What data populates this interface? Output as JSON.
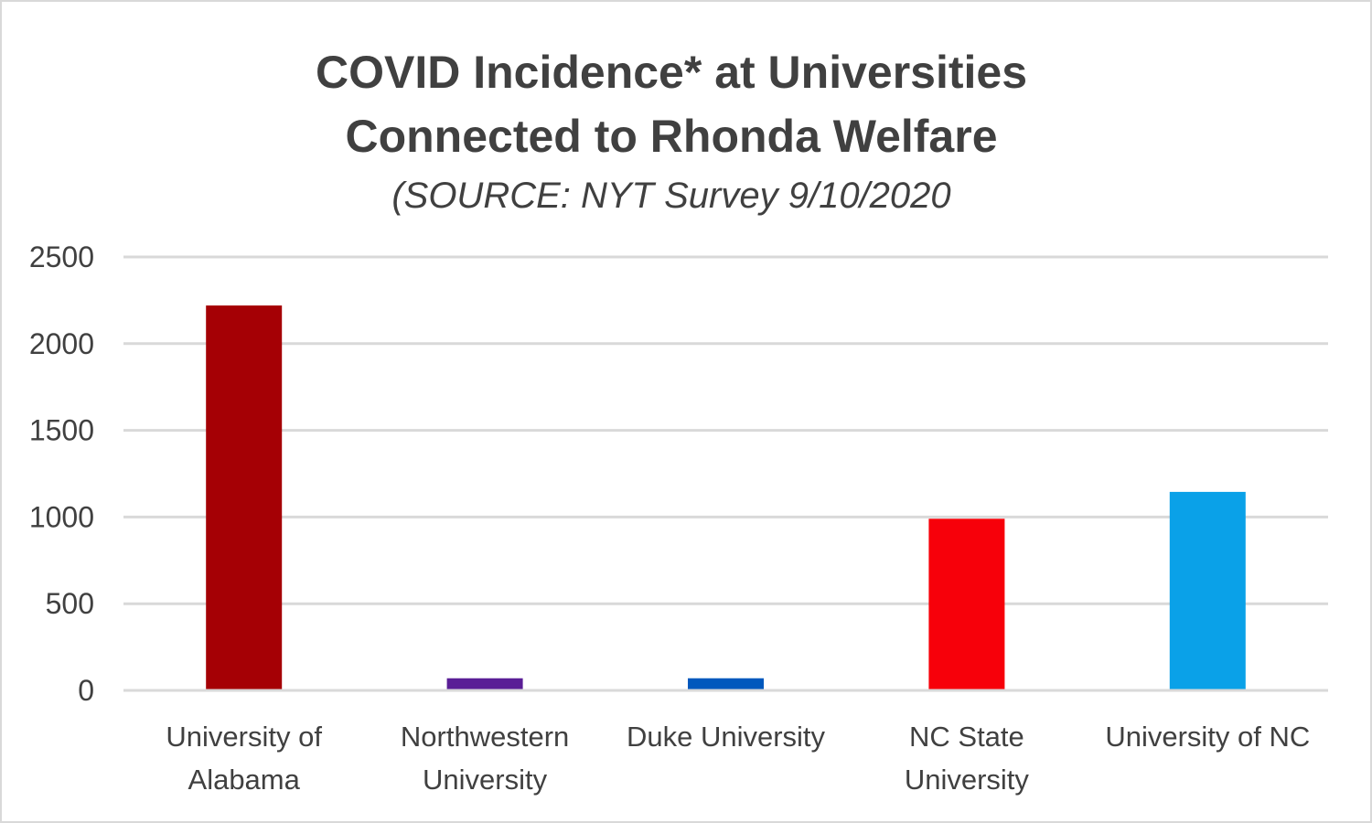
{
  "chart_data": {
    "type": "bar",
    "title_lines": [
      "COVID Incidence* at Universities",
      "Connected to Rhonda Welfare"
    ],
    "subtitle": "(SOURCE: NYT Survey 9/10/2020",
    "categories": [
      [
        "University of",
        "Alabama"
      ],
      [
        "Northwestern",
        "University"
      ],
      [
        "Duke University"
      ],
      [
        "NC State",
        "University"
      ],
      [
        "University of NC"
      ]
    ],
    "values": [
      2220,
      70,
      70,
      990,
      1145
    ],
    "colors": [
      "#a50005",
      "#5a1e96",
      "#0058bd",
      "#f7000a",
      "#0aa1e8"
    ],
    "ylim": [
      0,
      2500
    ],
    "yticks": [
      0,
      500,
      1000,
      1500,
      2000,
      2500
    ],
    "grid": true,
    "gridline_color": "#d9d9d9",
    "legend": "none"
  }
}
